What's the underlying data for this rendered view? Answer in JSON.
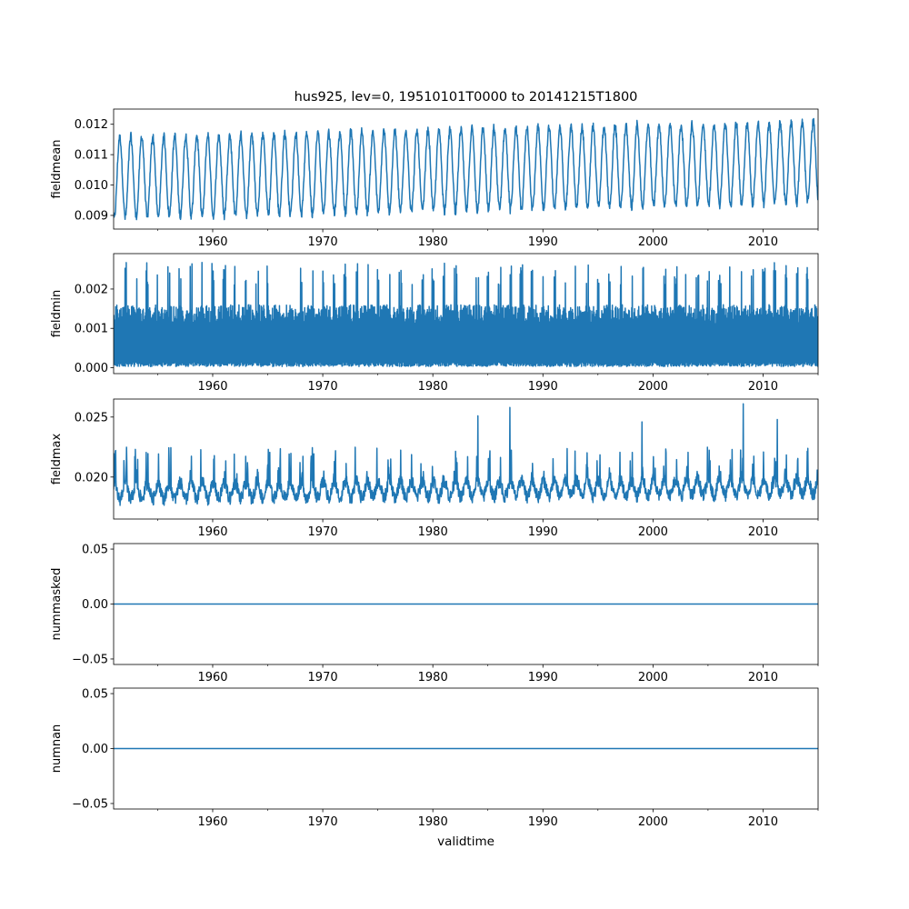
{
  "figure": {
    "title": "hus925, lev=0, 19510101T0000 to 20141215T1800",
    "xlabel": "validtime"
  },
  "colors": {
    "series": "#1f77b4",
    "axes": "#000000",
    "background": "#ffffff"
  },
  "chart_data": [
    {
      "type": "line",
      "ylabel": "fieldmean",
      "xlim": [
        1951.0,
        2015.0
      ],
      "ylim": [
        0.00855,
        0.0125
      ],
      "xticks": [
        1960,
        1970,
        1980,
        1990,
        2000,
        2010
      ],
      "yticks": [
        0.009,
        0.01,
        0.011,
        0.012
      ],
      "ytick_labels": [
        "0.009",
        "0.010",
        "0.011",
        "0.012"
      ],
      "series": [
        {
          "name": "fieldmean",
          "kind": "seasonal",
          "start": 1951.0,
          "end": 2015.0,
          "mean": 0.01025,
          "amplitude": 0.00135,
          "noise": 0.00012,
          "trend_per_year": 8e-06,
          "min_observed": 0.0087,
          "max_observed": 0.0123
        }
      ]
    },
    {
      "type": "line",
      "ylabel": "fieldmin",
      "xlim": [
        1951.0,
        2015.0
      ],
      "ylim": [
        -0.00015,
        0.0029
      ],
      "xticks": [
        1960,
        1970,
        1980,
        1990,
        2000,
        2010
      ],
      "yticks": [
        0.0,
        0.001,
        0.002
      ],
      "ytick_labels": [
        "0.000",
        "0.001",
        "0.002"
      ],
      "series": [
        {
          "name": "fieldmin",
          "kind": "band",
          "start": 1951.0,
          "end": 2015.0,
          "low_min": 3e-05,
          "low_max": 0.00015,
          "core_high": 0.0016,
          "peak_range": [
            0.0021,
            0.0028
          ],
          "min_observed": 0.0,
          "max_observed": 0.0028
        }
      ]
    },
    {
      "type": "line",
      "ylabel": "fieldmax",
      "xlim": [
        1951.0,
        2015.0
      ],
      "ylim": [
        0.0165,
        0.0265
      ],
      "xticks": [
        1960,
        1970,
        1980,
        1990,
        2000,
        2010
      ],
      "yticks": [
        0.02,
        0.025
      ],
      "ytick_labels": [
        "0.020",
        "0.025"
      ],
      "series": [
        {
          "name": "fieldmax",
          "kind": "spiky",
          "start": 1951.0,
          "end": 2015.0,
          "base_low": 0.0176,
          "base_high": 0.02,
          "spike_typical": 0.0225,
          "max_observed": 0.0261,
          "max_year": 2008.2,
          "notable_spikes": [
            [
              1984.1,
              0.0251
            ],
            [
              1987.0,
              0.0258
            ],
            [
              1999.0,
              0.0246
            ],
            [
              2008.2,
              0.0261
            ],
            [
              2011.3,
              0.0248
            ]
          ]
        }
      ]
    },
    {
      "type": "line",
      "ylabel": "nummasked",
      "xlim": [
        1951.0,
        2015.0
      ],
      "ylim": [
        -0.055,
        0.055
      ],
      "xticks": [
        1960,
        1970,
        1980,
        1990,
        2000,
        2010
      ],
      "yticks": [
        -0.05,
        0.0,
        0.05
      ],
      "ytick_labels": [
        "−0.05",
        "0.00",
        "0.05"
      ],
      "series": [
        {
          "name": "nummasked",
          "kind": "constant",
          "x": [
            1951.0,
            2015.0
          ],
          "y": [
            0,
            0
          ]
        }
      ]
    },
    {
      "type": "line",
      "ylabel": "numnan",
      "xlim": [
        1951.0,
        2015.0
      ],
      "ylim": [
        -0.055,
        0.055
      ],
      "xticks": [
        1960,
        1970,
        1980,
        1990,
        2000,
        2010
      ],
      "yticks": [
        -0.05,
        0.0,
        0.05
      ],
      "ytick_labels": [
        "−0.05",
        "0.00",
        "0.05"
      ],
      "series": [
        {
          "name": "numnan",
          "kind": "constant",
          "x": [
            1951.0,
            2015.0
          ],
          "y": [
            0,
            0
          ]
        }
      ]
    }
  ]
}
